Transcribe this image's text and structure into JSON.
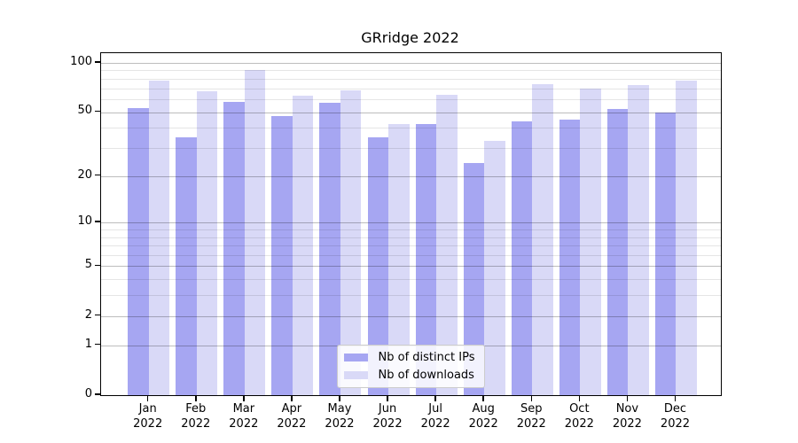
{
  "chart_data": {
    "type": "bar",
    "title": "GRridge 2022",
    "categories": [
      "Jan",
      "Feb",
      "Mar",
      "Apr",
      "May",
      "Jun",
      "Jul",
      "Aug",
      "Sep",
      "Oct",
      "Nov",
      "Dec"
    ],
    "x_tick_line2": "2022",
    "series": [
      {
        "name": "Nb of distinct IPs",
        "color": "#a6a6f2",
        "values": [
          53,
          35,
          58,
          47,
          57,
          35,
          42,
          24,
          44,
          45,
          52,
          50
        ]
      },
      {
        "name": "Nb of downloads",
        "color": "#d9d9f7",
        "values": [
          78,
          67,
          91,
          63,
          68,
          42,
          64,
          33,
          74,
          70,
          73,
          78
        ]
      }
    ],
    "yscale": "log1p",
    "ylim": [
      0,
      114.6
    ],
    "yticks_major": [
      0,
      1,
      2,
      5,
      10,
      20,
      50,
      100
    ],
    "yticks_minor": [
      3,
      4,
      6,
      7,
      8,
      9,
      30,
      40,
      60,
      70,
      80,
      90
    ],
    "grid": "horizontal",
    "legend_position": "lower-center-inside"
  },
  "colors": {
    "background": "#ffffff",
    "axis": "#000000",
    "text": "#000000",
    "grid_major": "rgba(0,0,0,0.26)",
    "grid_minor": "rgba(0,0,0,0.10)",
    "legend_border": "#cccccc",
    "legend_background": "rgba(255,255,255,0.85)"
  }
}
